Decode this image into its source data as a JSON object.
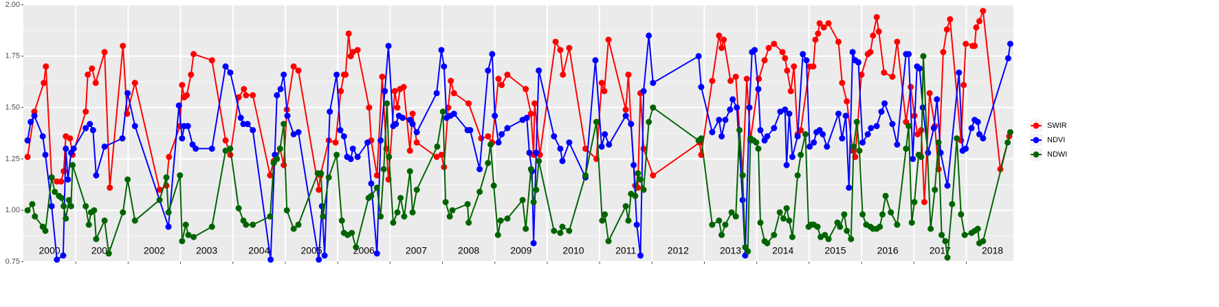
{
  "chart_data": {
    "type": "line",
    "xlim": [
      2000,
      2018.9
    ],
    "xticks": [
      2001,
      2002,
      2003,
      2004,
      2005,
      2006,
      2007,
      2008,
      2009,
      2010,
      2011,
      2012,
      2013,
      2014,
      2015,
      2016,
      2017,
      2018
    ],
    "year_labels": [
      2000,
      2001,
      2002,
      2003,
      2004,
      2005,
      2006,
      2007,
      2008,
      2009,
      2010,
      2011,
      2012,
      2013,
      2014,
      2015,
      2016,
      2017,
      2018
    ],
    "ylim": [
      0.75,
      2.0
    ],
    "yticks": [
      0.75,
      {
        "value": 1,
        "label": "1.00"
      },
      1.25,
      {
        "value": 1.5,
        "label": "1.50"
      },
      1.75,
      {
        "value": 2,
        "label": "2.00"
      }
    ],
    "grid": true,
    "legend": "right",
    "series": [
      {
        "name": "SWIR",
        "color": "#ff0000",
        "x": [
          2000.08,
          2000.21,
          2000.39,
          2000.43,
          2000.54,
          2000.64,
          2000.72,
          2000.77,
          2000.81,
          2000.89,
          2000.94,
          2001.19,
          2001.23,
          2001.31,
          2001.38,
          2001.55,
          2001.65,
          2001.9,
          2001.98,
          2002.13,
          2002.6,
          2002.73,
          2002.78,
          2002.99,
          2003.03,
          2003.07,
          2003.12,
          2003.2,
          2003.25,
          2003.6,
          2003.86,
          2003.95,
          2004.11,
          2004.21,
          2004.25,
          2004.38,
          2004.71,
          2004.78,
          2004.9,
          2004.97,
          2005.03,
          2005.16,
          2005.25,
          2005.64,
          2005.67,
          2005.83,
          2005.96,
          2006.06,
          2006.12,
          2006.15,
          2006.21,
          2006.25,
          2006.29,
          2006.38,
          2006.6,
          2006.64,
          2006.75,
          2006.85,
          2006.93,
          2006.97,
          2007.09,
          2007.14,
          2007.19,
          2007.26,
          2007.38,
          2007.43,
          2007.51,
          2007.89,
          2007.98,
          2008.03,
          2008.11,
          2008.16,
          2008.22,
          2008.5,
          2008.74,
          2008.87,
          2008.95,
          2009.07,
          2009.13,
          2009.24,
          2009.59,
          2009.69,
          2009.74,
          2009.76,
          2009.86,
          2010.16,
          2010.25,
          2010.3,
          2010.42,
          2010.73,
          2010.94,
          2011.04,
          2011.09,
          2011.17,
          2011.5,
          2011.55,
          2011.6,
          2011.68,
          2011.73,
          2011.78,
          2011.84,
          2012.02,
          2012.91,
          2012.94,
          2013.15,
          2013.28,
          2013.33,
          2013.37,
          2013.5,
          2013.6,
          2013.73,
          2013.81,
          2013.88,
          2014.04,
          2014.15,
          2014.23,
          2014.33,
          2014.49,
          2014.54,
          2014.58,
          2014.65,
          2014.71,
          2014.78,
          2014.84,
          2015.01,
          2015.08,
          2015.12,
          2015.17,
          2015.2,
          2015.28,
          2015.37,
          2015.56,
          2015.63,
          2015.72,
          2015.83,
          2015.88,
          2016.0,
          2016.12,
          2016.17,
          2016.22,
          2016.29,
          2016.33,
          2016.43,
          2016.59,
          2016.68,
          2016.85,
          2016.94,
          2017.01,
          2017.07,
          2017.14,
          2017.2,
          2017.3,
          2017.4,
          2017.47,
          2017.56,
          2017.63,
          2017.69,
          2017.9,
          2017.95,
          2017.99,
          2018.12,
          2018.16,
          2018.19,
          2018.25,
          2018.32,
          2018.65,
          2018.82
        ],
        "values": [
          1.26,
          1.48,
          1.62,
          1.7,
          1.16,
          1.14,
          1.14,
          1.19,
          1.36,
          1.35,
          1.27,
          1.48,
          1.66,
          1.69,
          1.62,
          1.77,
          1.11,
          1.8,
          1.47,
          1.62,
          1.1,
          1.12,
          1.26,
          1.41,
          1.61,
          1.55,
          1.56,
          1.66,
          1.76,
          1.73,
          1.34,
          1.27,
          1.55,
          1.59,
          1.56,
          1.56,
          1.17,
          1.24,
          1.3,
          1.22,
          1.49,
          1.7,
          1.68,
          1.1,
          1.17,
          1.34,
          1.33,
          1.58,
          1.66,
          1.66,
          1.86,
          1.75,
          1.77,
          1.78,
          1.5,
          1.34,
          1.17,
          1.65,
          1.3,
          1.15,
          1.58,
          1.5,
          1.59,
          1.6,
          1.29,
          1.47,
          1.33,
          1.26,
          1.27,
          1.21,
          1.5,
          1.63,
          1.57,
          1.52,
          1.35,
          1.36,
          1.33,
          1.64,
          1.61,
          1.66,
          1.59,
          1.47,
          1.27,
          1.52,
          1.27,
          1.82,
          1.78,
          1.66,
          1.79,
          1.3,
          1.25,
          1.62,
          1.58,
          1.83,
          1.49,
          1.66,
          1.42,
          1.12,
          1.11,
          1.57,
          1.3,
          1.17,
          1.33,
          1.27,
          1.63,
          1.85,
          1.79,
          1.83,
          1.63,
          1.65,
          1.17,
          1.64,
          1.34,
          1.64,
          1.73,
          1.79,
          1.81,
          1.77,
          1.74,
          1.68,
          1.58,
          1.7,
          1.37,
          1.39,
          1.7,
          1.7,
          1.83,
          1.86,
          1.91,
          1.89,
          1.91,
          1.82,
          1.62,
          1.53,
          1.29,
          1.26,
          1.66,
          1.76,
          1.77,
          1.85,
          1.94,
          1.87,
          1.67,
          1.65,
          1.82,
          1.43,
          1.6,
          1.46,
          1.37,
          1.39,
          1.04,
          1.57,
          1.41,
          1.2,
          1.77,
          1.88,
          1.93,
          1.34,
          1.61,
          1.81,
          1.8,
          1.8,
          1.89,
          1.92,
          1.97,
          1.2,
          1.36
        ]
      },
      {
        "name": "NDVI",
        "color": "#0000ff",
        "x": [
          2000.08,
          2000.14,
          2000.21,
          2000.37,
          2000.42,
          2000.54,
          2000.64,
          2000.76,
          2000.81,
          2000.85,
          2000.91,
          2000.96,
          2001.19,
          2001.27,
          2001.33,
          2001.39,
          2001.55,
          2001.89,
          2001.99,
          2002.13,
          2002.77,
          2002.97,
          2003.03,
          2003.07,
          2003.14,
          2003.23,
          2003.29,
          2003.6,
          2003.86,
          2003.95,
          2004.15,
          2004.2,
          2004.28,
          2004.38,
          2004.72,
          2004.8,
          2004.84,
          2004.91,
          2004.97,
          2005.04,
          2005.16,
          2005.25,
          2005.64,
          2005.7,
          2005.75,
          2005.85,
          2005.98,
          2006.05,
          2006.12,
          2006.18,
          2006.25,
          2006.29,
          2006.38,
          2006.57,
          2006.64,
          2006.75,
          2006.82,
          2006.9,
          2006.97,
          2007.06,
          2007.11,
          2007.17,
          2007.24,
          2007.38,
          2007.43,
          2007.51,
          2007.89,
          2007.98,
          2008.03,
          2008.08,
          2008.15,
          2008.22,
          2008.48,
          2008.53,
          2008.71,
          2008.87,
          2008.95,
          2009.0,
          2009.07,
          2009.13,
          2009.24,
          2009.53,
          2009.61,
          2009.66,
          2009.71,
          2009.74,
          2009.79,
          2009.84,
          2010.13,
          2010.25,
          2010.29,
          2010.42,
          2010.73,
          2010.92,
          2011.04,
          2011.1,
          2011.18,
          2011.5,
          2011.6,
          2011.65,
          2011.71,
          2011.78,
          2011.84,
          2011.94,
          2012.02,
          2012.89,
          2012.94,
          2013.15,
          2013.28,
          2013.33,
          2013.4,
          2013.49,
          2013.54,
          2013.62,
          2013.73,
          2013.78,
          2013.86,
          2013.91,
          2013.96,
          2014.03,
          2014.07,
          2014.15,
          2014.2,
          2014.33,
          2014.45,
          2014.54,
          2014.57,
          2014.62,
          2014.68,
          2014.78,
          2014.88,
          2014.95,
          2015.01,
          2015.09,
          2015.14,
          2015.2,
          2015.26,
          2015.34,
          2015.56,
          2015.63,
          2015.7,
          2015.76,
          2015.83,
          2015.88,
          2015.94,
          2016.02,
          2016.12,
          2016.18,
          2016.29,
          2016.38,
          2016.44,
          2016.59,
          2016.68,
          2016.85,
          2016.9,
          2016.98,
          2017.06,
          2017.11,
          2017.17,
          2017.27,
          2017.38,
          2017.44,
          2017.51,
          2017.64,
          2017.86,
          2017.93,
          2017.99,
          2018.1,
          2018.16,
          2018.22,
          2018.25,
          2018.32,
          2018.8,
          2018.84
        ],
        "values": [
          1.34,
          1.43,
          1.46,
          1.36,
          1.27,
          1.02,
          0.76,
          0.78,
          1.3,
          1.15,
          1.28,
          1.3,
          1.4,
          1.42,
          1.39,
          1.17,
          1.31,
          1.35,
          1.57,
          1.41,
          0.92,
          1.51,
          1.35,
          1.41,
          1.41,
          1.32,
          1.3,
          1.3,
          1.7,
          1.67,
          1.45,
          1.42,
          1.42,
          1.39,
          0.76,
          1.27,
          1.56,
          1.59,
          1.66,
          1.46,
          1.37,
          1.38,
          0.76,
          1.02,
          0.78,
          1.48,
          1.66,
          1.39,
          1.36,
          1.26,
          1.25,
          1.3,
          1.26,
          1.33,
          1.13,
          0.79,
          1.34,
          1.58,
          1.8,
          1.41,
          1.42,
          1.46,
          1.45,
          1.44,
          1.42,
          1.38,
          1.57,
          1.78,
          1.7,
          1.45,
          1.46,
          1.47,
          1.39,
          1.39,
          1.2,
          1.68,
          1.76,
          1.46,
          1.33,
          1.37,
          1.4,
          1.44,
          1.45,
          1.28,
          1.19,
          0.84,
          1.28,
          1.68,
          1.36,
          1.3,
          1.24,
          1.33,
          1.16,
          1.73,
          1.31,
          1.37,
          1.32,
          1.46,
          1.42,
          1.22,
          0.93,
          0.78,
          1.58,
          1.85,
          1.62,
          1.75,
          1.6,
          1.38,
          1.44,
          1.36,
          1.44,
          1.49,
          1.54,
          1.5,
          1.05,
          0.78,
          1.5,
          1.77,
          1.78,
          1.59,
          1.39,
          1.34,
          1.36,
          1.4,
          1.48,
          1.49,
          1.22,
          1.47,
          1.26,
          1.36,
          1.76,
          1.73,
          1.31,
          1.33,
          1.38,
          1.39,
          1.37,
          1.31,
          1.47,
          1.35,
          1.46,
          1.11,
          1.77,
          1.73,
          1.72,
          1.33,
          1.37,
          1.4,
          1.41,
          1.48,
          1.52,
          1.42,
          1.32,
          1.76,
          1.76,
          1.25,
          1.7,
          1.69,
          1.5,
          1.28,
          1.4,
          1.54,
          1.28,
          1.12,
          1.67,
          1.29,
          1.3,
          1.4,
          1.44,
          1.43,
          1.37,
          1.35,
          1.74,
          1.81
        ]
      },
      {
        "name": "NDWI",
        "color": "#006400",
        "x": [
          2000.08,
          2000.17,
          2000.22,
          2000.37,
          2000.42,
          2000.54,
          2000.6,
          2000.68,
          2000.73,
          2000.77,
          2000.81,
          2000.87,
          2000.91,
          2000.94,
          2001.19,
          2001.25,
          2001.29,
          2001.35,
          2001.39,
          2001.55,
          2001.63,
          2001.9,
          2001.99,
          2002.13,
          2002.6,
          2002.73,
          2002.77,
          2002.99,
          2003.03,
          2003.1,
          2003.15,
          2003.25,
          2003.6,
          2003.86,
          2003.95,
          2004.11,
          2004.2,
          2004.25,
          2004.38,
          2004.71,
          2004.78,
          2004.84,
          2004.9,
          2004.97,
          2005.03,
          2005.16,
          2005.25,
          2005.62,
          2005.68,
          2005.72,
          2005.83,
          2005.98,
          2006.08,
          2006.12,
          2006.19,
          2006.27,
          2006.35,
          2006.59,
          2006.64,
          2006.75,
          2006.82,
          2006.88,
          2006.94,
          2006.98,
          2007.06,
          2007.14,
          2007.2,
          2007.27,
          2007.38,
          2007.43,
          2007.51,
          2007.9,
          2008.01,
          2008.06,
          2008.14,
          2008.19,
          2008.48,
          2008.5,
          2008.71,
          2008.87,
          2008.92,
          2008.98,
          2009.06,
          2009.11,
          2009.24,
          2009.53,
          2009.59,
          2009.69,
          2009.74,
          2009.79,
          2009.84,
          2010.13,
          2010.25,
          2010.29,
          2010.42,
          2010.73,
          2010.94,
          2011.05,
          2011.1,
          2011.17,
          2011.5,
          2011.55,
          2011.6,
          2011.68,
          2011.73,
          2011.78,
          2011.84,
          2011.94,
          2012.02,
          2012.89,
          2012.94,
          2013.15,
          2013.28,
          2013.33,
          2013.4,
          2013.52,
          2013.6,
          2013.67,
          2013.73,
          2013.78,
          2013.83,
          2013.88,
          2013.94,
          2013.99,
          2014.03,
          2014.07,
          2014.15,
          2014.2,
          2014.33,
          2014.44,
          2014.51,
          2014.57,
          2014.62,
          2014.68,
          2014.78,
          2014.84,
          2014.93,
          2014.99,
          2015.04,
          2015.09,
          2015.16,
          2015.22,
          2015.3,
          2015.37,
          2015.54,
          2015.59,
          2015.67,
          2015.72,
          2015.8,
          2015.85,
          2015.91,
          2015.96,
          2016.02,
          2016.09,
          2016.17,
          2016.22,
          2016.29,
          2016.35,
          2016.4,
          2016.46,
          2016.56,
          2016.68,
          2016.85,
          2016.9,
          2016.96,
          2017.01,
          2017.09,
          2017.14,
          2017.18,
          2017.32,
          2017.4,
          2017.47,
          2017.53,
          2017.6,
          2017.64,
          2017.73,
          2017.82,
          2017.9,
          2017.97,
          2018.1,
          2018.16,
          2018.22,
          2018.25,
          2018.32,
          2018.79,
          2018.84
        ],
        "values": [
          1.0,
          1.03,
          0.97,
          0.92,
          0.9,
          1.16,
          1.09,
          1.07,
          1.06,
          1.02,
          0.96,
          1.05,
          1.02,
          1.22,
          1.02,
          0.93,
          0.99,
          1.0,
          0.86,
          0.95,
          0.79,
          0.99,
          1.15,
          0.95,
          1.05,
          1.16,
          0.99,
          1.17,
          0.85,
          0.93,
          0.88,
          0.87,
          0.92,
          1.29,
          1.3,
          1.01,
          0.95,
          0.93,
          0.93,
          0.97,
          1.23,
          1.25,
          1.3,
          1.42,
          1.0,
          0.91,
          0.93,
          1.18,
          1.18,
          0.97,
          1.16,
          1.27,
          0.95,
          0.89,
          0.88,
          0.89,
          0.82,
          1.06,
          1.07,
          1.11,
          0.97,
          1.2,
          1.52,
          1.26,
          0.94,
          0.99,
          1.06,
          0.97,
          1.19,
          0.99,
          1.1,
          1.31,
          1.48,
          1.04,
          0.97,
          1.0,
          1.03,
          0.94,
          1.09,
          1.23,
          1.32,
          1.12,
          0.88,
          0.95,
          0.96,
          1.05,
          0.91,
          1.2,
          1.04,
          1.1,
          1.24,
          0.9,
          0.89,
          0.92,
          0.9,
          1.17,
          1.43,
          0.95,
          0.98,
          0.85,
          1.02,
          0.95,
          1.08,
          1.07,
          1.18,
          1.15,
          1.1,
          1.43,
          1.5,
          1.34,
          1.35,
          0.93,
          0.95,
          0.88,
          0.93,
          0.99,
          0.97,
          1.39,
          1.17,
          0.82,
          0.8,
          1.35,
          1.34,
          1.33,
          1.3,
          0.94,
          0.85,
          0.84,
          0.88,
          0.99,
          0.96,
          1.01,
          0.95,
          0.87,
          1.17,
          1.27,
          1.37,
          0.92,
          0.93,
          0.93,
          0.92,
          0.87,
          0.88,
          0.86,
          0.94,
          0.92,
          0.98,
          0.9,
          0.86,
          1.31,
          1.43,
          1.29,
          0.98,
          0.93,
          0.92,
          0.91,
          0.91,
          0.92,
          0.98,
          1.07,
          0.99,
          0.93,
          1.3,
          1.41,
          0.94,
          1.04,
          1.27,
          1.26,
          1.75,
          0.91,
          1.1,
          1.33,
          0.88,
          0.85,
          0.77,
          1.03,
          1.35,
          0.98,
          0.88,
          0.89,
          0.9,
          0.91,
          0.84,
          0.85,
          1.33,
          1.38
        ]
      }
    ]
  }
}
